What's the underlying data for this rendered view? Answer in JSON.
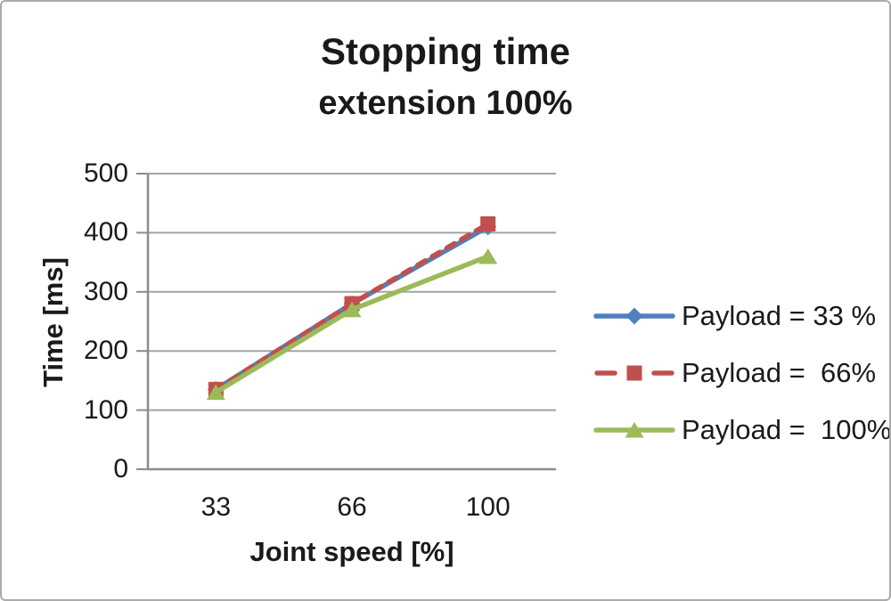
{
  "title": {
    "line1": "Stopping time",
    "line2": "extension 100%"
  },
  "y_axis": {
    "title": "Time [ms]",
    "ticks": [
      0,
      100,
      200,
      300,
      400,
      500
    ]
  },
  "x_axis": {
    "title": "Joint speed [%]",
    "categories": [
      "33",
      "66",
      "100"
    ]
  },
  "chart_data": {
    "type": "line",
    "title": "Stopping time extension 100%",
    "xlabel": "Joint speed [%]",
    "ylabel": "Time [ms]",
    "categories": [
      33,
      66,
      100
    ],
    "series": [
      {
        "name": "Payload = 33 %",
        "color": "#4f81bd",
        "marker": "diamond",
        "line_style": "solid",
        "values": [
          135,
          280,
          410
        ]
      },
      {
        "name": "Payload =  66%",
        "color": "#c0504d",
        "marker": "square",
        "line_style": "dashed",
        "values": [
          135,
          280,
          415
        ]
      },
      {
        "name": "Payload =  100%",
        "color": "#9bbb59",
        "marker": "triangle",
        "line_style": "solid",
        "values": [
          130,
          270,
          360
        ]
      }
    ],
    "ylim": [
      0,
      500
    ],
    "grid": "horizontal",
    "legend_position": "right"
  },
  "colors": {
    "gridline": "#a3a3a3",
    "axis": "#8c8c8c",
    "border": "#ababab",
    "text": "#1a1a1a",
    "background": "#ffffff"
  }
}
